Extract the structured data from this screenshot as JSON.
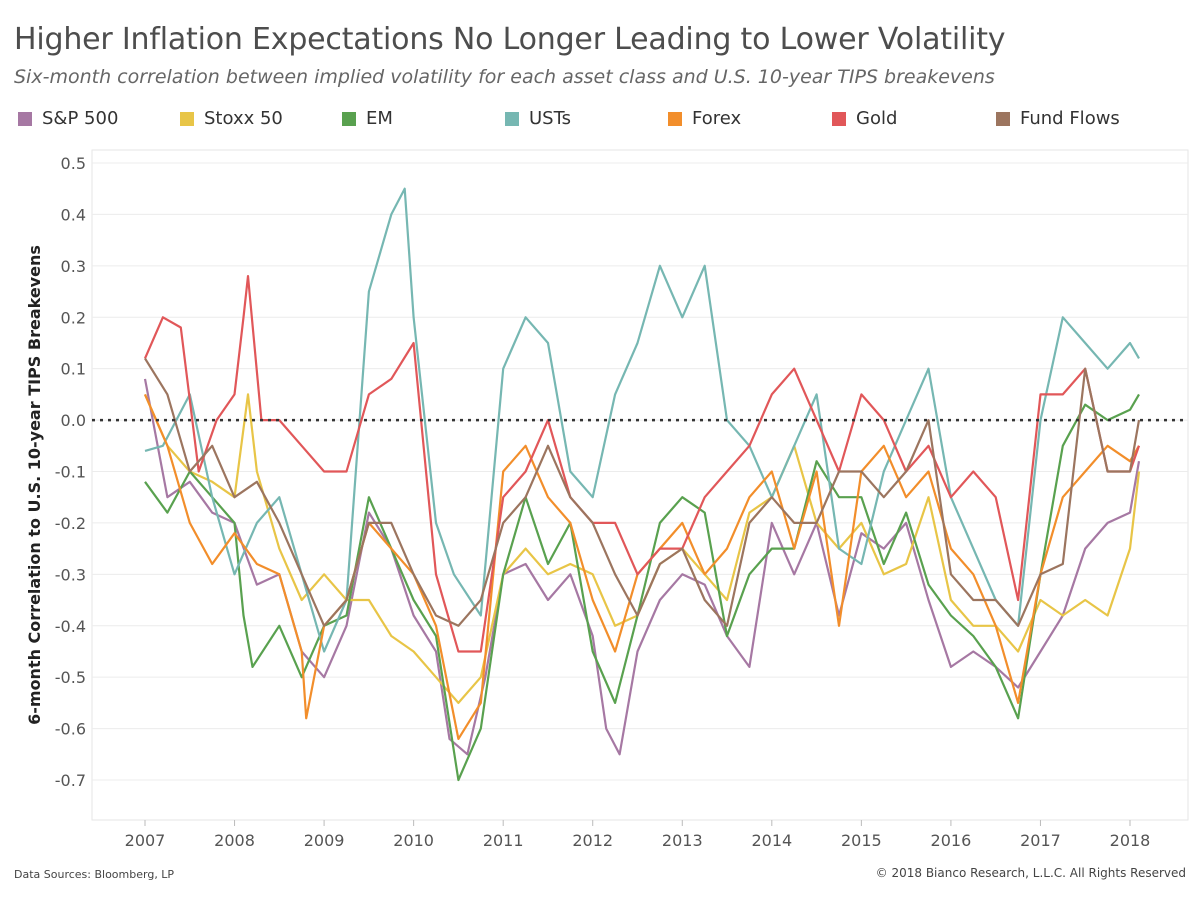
{
  "header": {
    "title": "Higher Inflation Expectations No Longer Leading to Lower Volatility",
    "subtitle": "Six-month correlation between implied volatility for each asset class and U.S. 10-year TIPS breakevens"
  },
  "footer": {
    "source": "Data Sources: Bloomberg, LP",
    "copyright": "© 2018 Bianco Research, L.L.C. All Rights Reserved"
  },
  "chart_data": {
    "type": "line",
    "title": "Higher Inflation Expectations No Longer Leading to Lower Volatility",
    "subtitle": "Six-month correlation between implied volatility for each asset class and U.S. 10-year TIPS breakevens",
    "xlabel": "",
    "ylabel": "6-month Correlation to U.S. 10-year TIPS Breakevens",
    "xlim": [
      2006.5,
      2018.5
    ],
    "ylim": [
      -0.8,
      0.55
    ],
    "x_ticks": [
      "2007",
      "2008",
      "2009",
      "2010",
      "2011",
      "2012",
      "2013",
      "2014",
      "2015",
      "2016",
      "2017",
      "2018"
    ],
    "y_ticks": [
      0.5,
      0.4,
      0.3,
      0.2,
      0.1,
      0.0,
      -0.1,
      -0.2,
      -0.3,
      -0.4,
      -0.5,
      -0.6,
      -0.7
    ],
    "y_tick_labels": [
      "0.5",
      "0.4",
      "0.3",
      "0.2",
      "0.1",
      "0.0",
      "-0.1",
      "-0.2",
      "-0.3",
      "-0.4",
      "-0.5",
      "-0.6",
      "-0.7"
    ],
    "zero_line": "dotted",
    "grid": "horizontal",
    "legend_position": "top",
    "series": [
      {
        "name": "S&P 500",
        "color": "#a678a3",
        "x": [
          2007.0,
          2007.25,
          2007.5,
          2007.75,
          2008.0,
          2008.25,
          2008.5,
          2008.75,
          2009.0,
          2009.25,
          2009.5,
          2009.75,
          2010.0,
          2010.25,
          2010.4,
          2010.6,
          2010.8,
          2011.0,
          2011.25,
          2011.5,
          2011.75,
          2012.0,
          2012.15,
          2012.3,
          2012.5,
          2012.75,
          2013.0,
          2013.25,
          2013.5,
          2013.75,
          2014.0,
          2014.25,
          2014.5,
          2014.75,
          2015.0,
          2015.25,
          2015.5,
          2015.75,
          2016.0,
          2016.25,
          2016.5,
          2016.75,
          2017.0,
          2017.25,
          2017.5,
          2017.75,
          2018.0,
          2018.1
        ],
        "y": [
          0.08,
          -0.15,
          -0.12,
          -0.18,
          -0.2,
          -0.32,
          -0.3,
          -0.45,
          -0.5,
          -0.4,
          -0.18,
          -0.25,
          -0.38,
          -0.45,
          -0.62,
          -0.65,
          -0.5,
          -0.3,
          -0.28,
          -0.35,
          -0.3,
          -0.42,
          -0.6,
          -0.65,
          -0.45,
          -0.35,
          -0.3,
          -0.32,
          -0.42,
          -0.48,
          -0.2,
          -0.3,
          -0.2,
          -0.38,
          -0.22,
          -0.25,
          -0.2,
          -0.35,
          -0.48,
          -0.45,
          -0.48,
          -0.52,
          -0.45,
          -0.38,
          -0.25,
          -0.2,
          -0.18,
          -0.08
        ]
      },
      {
        "name": "Stoxx 50",
        "color": "#e8c547",
        "x": [
          2007.0,
          2007.25,
          2007.5,
          2007.75,
          2008.0,
          2008.15,
          2008.25,
          2008.5,
          2008.75,
          2009.0,
          2009.25,
          2009.5,
          2009.75,
          2010.0,
          2010.25,
          2010.5,
          2010.75,
          2011.0,
          2011.25,
          2011.5,
          2011.75,
          2012.0,
          2012.25,
          2012.5,
          2012.75,
          2013.0,
          2013.25,
          2013.5,
          2013.75,
          2014.0,
          2014.25,
          2014.5,
          2014.75,
          2015.0,
          2015.25,
          2015.5,
          2015.75,
          2016.0,
          2016.25,
          2016.5,
          2016.75,
          2017.0,
          2017.25,
          2017.5,
          2017.75,
          2018.0,
          2018.1
        ],
        "y": [
          0.05,
          -0.05,
          -0.1,
          -0.12,
          -0.15,
          0.05,
          -0.1,
          -0.25,
          -0.35,
          -0.3,
          -0.35,
          -0.35,
          -0.42,
          -0.45,
          -0.5,
          -0.55,
          -0.5,
          -0.3,
          -0.25,
          -0.3,
          -0.28,
          -0.3,
          -0.4,
          -0.38,
          -0.28,
          -0.25,
          -0.3,
          -0.35,
          -0.18,
          -0.15,
          -0.05,
          -0.2,
          -0.25,
          -0.2,
          -0.3,
          -0.28,
          -0.15,
          -0.35,
          -0.4,
          -0.4,
          -0.45,
          -0.35,
          -0.38,
          -0.35,
          -0.38,
          -0.25,
          -0.1
        ]
      },
      {
        "name": "EM",
        "color": "#59a14f",
        "x": [
          2007.0,
          2007.25,
          2007.5,
          2007.75,
          2008.0,
          2008.1,
          2008.2,
          2008.5,
          2008.75,
          2009.0,
          2009.25,
          2009.5,
          2009.75,
          2010.0,
          2010.25,
          2010.5,
          2010.75,
          2011.0,
          2011.25,
          2011.5,
          2011.75,
          2012.0,
          2012.25,
          2012.5,
          2012.75,
          2013.0,
          2013.25,
          2013.5,
          2013.75,
          2014.0,
          2014.25,
          2014.5,
          2014.75,
          2015.0,
          2015.25,
          2015.5,
          2015.75,
          2016.0,
          2016.25,
          2016.5,
          2016.75,
          2017.0,
          2017.25,
          2017.5,
          2017.75,
          2018.0,
          2018.1
        ],
        "y": [
          -0.12,
          -0.18,
          -0.1,
          -0.15,
          -0.2,
          -0.38,
          -0.48,
          -0.4,
          -0.5,
          -0.4,
          -0.38,
          -0.15,
          -0.25,
          -0.35,
          -0.42,
          -0.7,
          -0.6,
          -0.3,
          -0.15,
          -0.28,
          -0.2,
          -0.45,
          -0.55,
          -0.38,
          -0.2,
          -0.15,
          -0.18,
          -0.42,
          -0.3,
          -0.25,
          -0.25,
          -0.08,
          -0.15,
          -0.15,
          -0.28,
          -0.18,
          -0.32,
          -0.38,
          -0.42,
          -0.48,
          -0.58,
          -0.3,
          -0.05,
          0.03,
          0.0,
          0.02,
          0.05
        ]
      },
      {
        "name": "USTs",
        "color": "#76b7b2",
        "x": [
          2007.0,
          2007.2,
          2007.5,
          2007.75,
          2008.0,
          2008.25,
          2008.5,
          2008.75,
          2009.0,
          2009.25,
          2009.5,
          2009.75,
          2009.9,
          2010.0,
          2010.25,
          2010.45,
          2010.75,
          2011.0,
          2011.25,
          2011.5,
          2011.75,
          2012.0,
          2012.25,
          2012.5,
          2012.75,
          2013.0,
          2013.25,
          2013.5,
          2013.75,
          2014.0,
          2014.25,
          2014.5,
          2014.75,
          2015.0,
          2015.25,
          2015.5,
          2015.75,
          2016.0,
          2016.25,
          2016.5,
          2016.75,
          2017.0,
          2017.25,
          2017.5,
          2017.75,
          2018.0,
          2018.1
        ],
        "y": [
          -0.06,
          -0.05,
          0.05,
          -0.15,
          -0.3,
          -0.2,
          -0.15,
          -0.3,
          -0.45,
          -0.35,
          0.25,
          0.4,
          0.45,
          0.2,
          -0.2,
          -0.3,
          -0.38,
          0.1,
          0.2,
          0.15,
          -0.1,
          -0.15,
          0.05,
          0.15,
          0.3,
          0.2,
          0.3,
          0.0,
          -0.05,
          -0.15,
          -0.05,
          0.05,
          -0.25,
          -0.28,
          -0.1,
          0.0,
          0.1,
          -0.15,
          -0.25,
          -0.35,
          -0.4,
          0.0,
          0.2,
          0.15,
          0.1,
          0.15,
          0.12
        ]
      },
      {
        "name": "Forex",
        "color": "#f28e2b",
        "x": [
          2007.0,
          2007.25,
          2007.5,
          2007.75,
          2008.0,
          2008.25,
          2008.5,
          2008.75,
          2008.8,
          2009.0,
          2009.25,
          2009.5,
          2009.75,
          2010.0,
          2010.25,
          2010.5,
          2010.75,
          2011.0,
          2011.25,
          2011.5,
          2011.75,
          2012.0,
          2012.25,
          2012.5,
          2012.75,
          2013.0,
          2013.25,
          2013.5,
          2013.75,
          2014.0,
          2014.25,
          2014.5,
          2014.75,
          2015.0,
          2015.25,
          2015.5,
          2015.75,
          2016.0,
          2016.25,
          2016.5,
          2016.75,
          2017.0,
          2017.25,
          2017.5,
          2017.75,
          2018.0,
          2018.1
        ],
        "y": [
          0.05,
          -0.05,
          -0.2,
          -0.28,
          -0.22,
          -0.28,
          -0.3,
          -0.45,
          -0.58,
          -0.4,
          -0.35,
          -0.2,
          -0.25,
          -0.3,
          -0.4,
          -0.62,
          -0.55,
          -0.1,
          -0.05,
          -0.15,
          -0.2,
          -0.35,
          -0.45,
          -0.3,
          -0.25,
          -0.2,
          -0.3,
          -0.25,
          -0.15,
          -0.1,
          -0.25,
          -0.1,
          -0.4,
          -0.1,
          -0.05,
          -0.15,
          -0.1,
          -0.25,
          -0.3,
          -0.4,
          -0.55,
          -0.3,
          -0.15,
          -0.1,
          -0.05,
          -0.08,
          -0.05
        ]
      },
      {
        "name": "Gold",
        "color": "#e15759",
        "x": [
          2007.0,
          2007.2,
          2007.4,
          2007.6,
          2007.8,
          2008.0,
          2008.1,
          2008.15,
          2008.3,
          2008.5,
          2008.75,
          2009.0,
          2009.25,
          2009.5,
          2009.75,
          2010.0,
          2010.25,
          2010.5,
          2010.75,
          2011.0,
          2011.25,
          2011.5,
          2011.75,
          2012.0,
          2012.25,
          2012.5,
          2012.75,
          2013.0,
          2013.25,
          2013.5,
          2013.75,
          2014.0,
          2014.25,
          2014.5,
          2014.75,
          2015.0,
          2015.25,
          2015.5,
          2015.75,
          2016.0,
          2016.25,
          2016.5,
          2016.75,
          2017.0,
          2017.25,
          2017.5,
          2017.75,
          2018.0,
          2018.1
        ],
        "y": [
          0.12,
          0.2,
          0.18,
          -0.1,
          0.0,
          0.05,
          0.2,
          0.28,
          0.0,
          0.0,
          -0.05,
          -0.1,
          -0.1,
          0.05,
          0.08,
          0.15,
          -0.3,
          -0.45,
          -0.45,
          -0.15,
          -0.1,
          0.0,
          -0.15,
          -0.2,
          -0.2,
          -0.3,
          -0.25,
          -0.25,
          -0.15,
          -0.1,
          -0.05,
          0.05,
          0.1,
          0.0,
          -0.1,
          0.05,
          0.0,
          -0.1,
          -0.05,
          -0.15,
          -0.1,
          -0.15,
          -0.35,
          0.05,
          0.05,
          0.1,
          -0.1,
          -0.1,
          -0.05
        ]
      },
      {
        "name": "Fund Flows",
        "color": "#9c755f",
        "x": [
          2007.0,
          2007.25,
          2007.5,
          2007.75,
          2008.0,
          2008.25,
          2008.5,
          2008.75,
          2009.0,
          2009.25,
          2009.5,
          2009.75,
          2010.0,
          2010.25,
          2010.5,
          2010.75,
          2011.0,
          2011.25,
          2011.5,
          2011.75,
          2012.0,
          2012.25,
          2012.5,
          2012.75,
          2013.0,
          2013.25,
          2013.5,
          2013.75,
          2014.0,
          2014.25,
          2014.5,
          2014.75,
          2015.0,
          2015.25,
          2015.5,
          2015.75,
          2016.0,
          2016.25,
          2016.5,
          2016.75,
          2017.0,
          2017.25,
          2017.5,
          2017.75,
          2018.0,
          2018.1
        ],
        "y": [
          0.12,
          0.05,
          -0.1,
          -0.05,
          -0.15,
          -0.12,
          -0.2,
          -0.3,
          -0.4,
          -0.35,
          -0.2,
          -0.2,
          -0.3,
          -0.38,
          -0.4,
          -0.35,
          -0.2,
          -0.15,
          -0.05,
          -0.15,
          -0.2,
          -0.3,
          -0.38,
          -0.28,
          -0.25,
          -0.35,
          -0.4,
          -0.2,
          -0.15,
          -0.2,
          -0.2,
          -0.1,
          -0.1,
          -0.15,
          -0.1,
          0.0,
          -0.3,
          -0.35,
          -0.35,
          -0.4,
          -0.3,
          -0.28,
          0.1,
          -0.1,
          -0.1,
          0.0
        ]
      }
    ]
  }
}
